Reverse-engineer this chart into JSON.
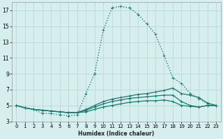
{
  "xlabel": "Humidex (Indice chaleur)",
  "bg_color": "#d6eeee",
  "grid_color": "#b8d8d8",
  "line_color": "#1a7a6e",
  "xlim": [
    -0.5,
    23.5
  ],
  "ylim": [
    3,
    18
  ],
  "xticks": [
    0,
    1,
    2,
    3,
    4,
    5,
    6,
    7,
    8,
    9,
    10,
    11,
    12,
    13,
    14,
    15,
    16,
    17,
    18,
    19,
    20,
    21,
    22,
    23
  ],
  "yticks": [
    3,
    5,
    7,
    9,
    11,
    13,
    15,
    17
  ],
  "series": [
    {
      "x": [
        0,
        1,
        2,
        3,
        4,
        5,
        6,
        7,
        8,
        9,
        10,
        11,
        12,
        13,
        14,
        15,
        16,
        17,
        18,
        19,
        20,
        21,
        22,
        23
      ],
      "y": [
        5.0,
        4.7,
        4.5,
        4.0,
        4.0,
        3.8,
        3.7,
        3.8,
        6.5,
        9.0,
        14.5,
        17.3,
        17.5,
        17.3,
        16.5,
        15.3,
        14.0,
        11.3,
        8.5,
        7.8,
        6.5,
        5.9,
        5.2,
        5.0
      ],
      "lw": 1.0,
      "ls": ":"
    },
    {
      "x": [
        0,
        1,
        2,
        3,
        4,
        5,
        6,
        7,
        8,
        9,
        10,
        11,
        12,
        13,
        14,
        15,
        16,
        17,
        18,
        19,
        20,
        21,
        22,
        23
      ],
      "y": [
        5.0,
        4.7,
        4.5,
        4.4,
        4.3,
        4.2,
        4.1,
        4.1,
        4.5,
        5.0,
        5.5,
        5.8,
        6.0,
        6.2,
        6.4,
        6.5,
        6.7,
        6.9,
        7.2,
        6.5,
        6.3,
        6.0,
        5.3,
        5.0
      ],
      "lw": 0.9,
      "ls": "-"
    },
    {
      "x": [
        0,
        1,
        2,
        3,
        4,
        5,
        6,
        7,
        8,
        9,
        10,
        11,
        12,
        13,
        14,
        15,
        16,
        17,
        18,
        19,
        20,
        21,
        22,
        23
      ],
      "y": [
        5.0,
        4.7,
        4.5,
        4.4,
        4.3,
        4.2,
        4.1,
        4.1,
        4.4,
        4.8,
        5.2,
        5.5,
        5.7,
        5.9,
        6.0,
        6.1,
        6.2,
        6.3,
        6.3,
        5.5,
        5.0,
        4.8,
        5.0,
        5.0
      ],
      "lw": 0.9,
      "ls": "-"
    },
    {
      "x": [
        0,
        1,
        2,
        3,
        4,
        5,
        6,
        7,
        8,
        9,
        10,
        11,
        12,
        13,
        14,
        15,
        16,
        17,
        18,
        19,
        20,
        21,
        22,
        23
      ],
      "y": [
        5.0,
        4.7,
        4.5,
        4.4,
        4.3,
        4.2,
        4.1,
        4.1,
        4.2,
        4.5,
        4.8,
        5.0,
        5.2,
        5.4,
        5.5,
        5.6,
        5.6,
        5.7,
        5.5,
        5.0,
        4.9,
        4.8,
        5.0,
        5.0
      ],
      "lw": 0.9,
      "ls": "-"
    }
  ]
}
